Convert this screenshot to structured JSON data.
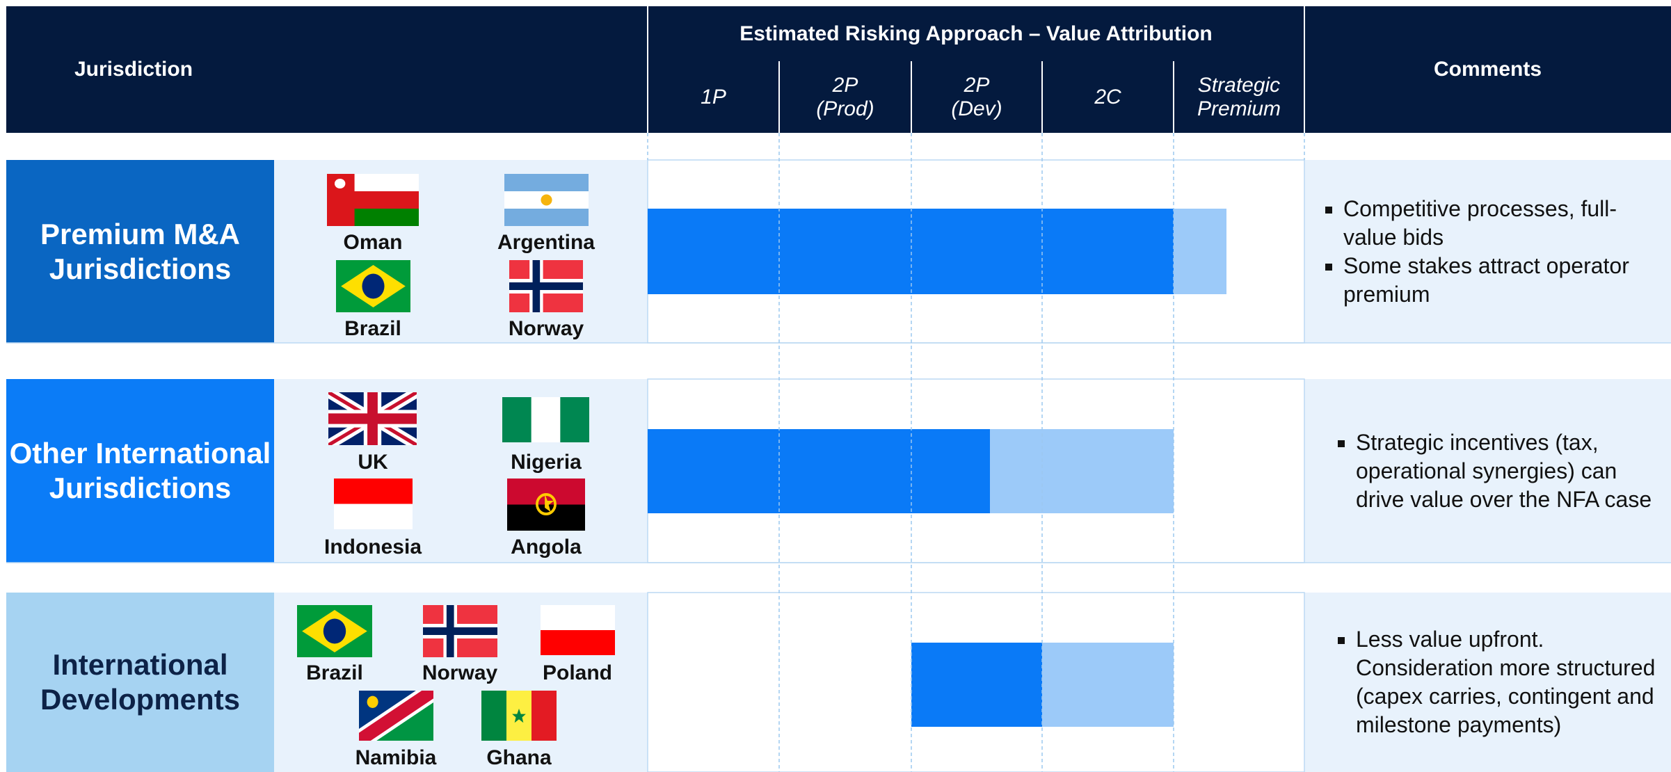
{
  "header": {
    "jurisdiction": "Jurisdiction",
    "group_title": "Estimated Risking Approach – Value Attribution",
    "columns": [
      "1P",
      "2P (Prod)",
      "2P (Dev)",
      "2C",
      "Strategic Premium"
    ],
    "comments": "Comments"
  },
  "rows": [
    {
      "label": "Premium M&A Jurisdictions",
      "countries": [
        "Oman",
        "Argentina",
        "Brazil",
        "Norway"
      ],
      "comments": [
        "Competitive processes, full-value bids",
        "Some stakes attract operator premium"
      ]
    },
    {
      "label": "Other International Jurisdictions",
      "countries": [
        "UK",
        "Nigeria",
        "Indonesia",
        "Angola"
      ],
      "comments": [
        "Strategic incentives (tax, operational synergies) can drive value over the NFA case"
      ]
    },
    {
      "label": "International Developments",
      "countries": [
        "Brazil",
        "Norway",
        "Poland",
        "Namibia",
        "Ghana"
      ],
      "comments": [
        "Less value upfront. Consideration more structured (capex carries, contingent and milestone payments)"
      ]
    }
  ]
}
